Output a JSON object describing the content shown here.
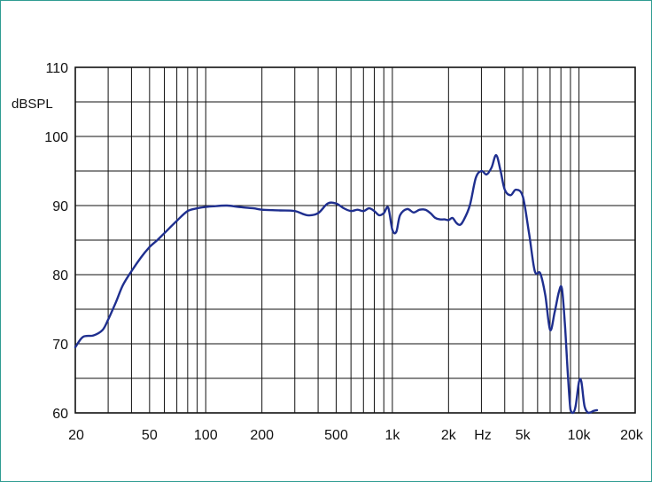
{
  "chart_data": {
    "type": "line",
    "title": "",
    "xlabel": "Hz",
    "ylabel": "dBSPL",
    "x_scale": "log",
    "xlim": [
      20,
      20000
    ],
    "ylim": [
      60,
      110
    ],
    "grid": true,
    "legend": "none",
    "colors": {
      "line": "#1f2f8f",
      "grid": "#111111",
      "frame": "#2f9c92"
    },
    "x_ticks": [
      {
        "value": 20,
        "label": "20"
      },
      {
        "value": 50,
        "label": "50"
      },
      {
        "value": 100,
        "label": "100"
      },
      {
        "value": 200,
        "label": "200"
      },
      {
        "value": 500,
        "label": "500"
      },
      {
        "value": 1000,
        "label": "1k"
      },
      {
        "value": 2000,
        "label": "2k"
      },
      {
        "value": 5000,
        "label": "5k"
      },
      {
        "value": 10000,
        "label": "10k"
      },
      {
        "value": 20000,
        "label": "20k"
      }
    ],
    "y_ticks": [
      {
        "value": 60,
        "label": "60"
      },
      {
        "value": 70,
        "label": "70"
      },
      {
        "value": 80,
        "label": "80"
      },
      {
        "value": 90,
        "label": "90"
      },
      {
        "value": 100,
        "label": "100"
      },
      {
        "value": 110,
        "label": "110"
      }
    ],
    "series": [
      {
        "x": [
          20,
          22,
          25,
          28,
          30,
          33,
          36,
          40,
          45,
          50,
          55,
          60,
          70,
          80,
          90,
          100,
          110,
          130,
          150,
          180,
          200,
          250,
          300,
          350,
          400,
          450,
          500,
          550,
          600,
          650,
          700,
          750,
          800,
          850,
          900,
          950,
          1000,
          1050,
          1100,
          1200,
          1300,
          1400,
          1500,
          1600,
          1700,
          1800,
          1900,
          2000,
          2100,
          2200,
          2300,
          2400,
          2600,
          2800,
          3000,
          3200,
          3400,
          3600,
          3800,
          4000,
          4300,
          4600,
          5000,
          5400,
          5800,
          6200,
          6600,
          7000,
          7400,
          7800,
          8100,
          8400,
          8700,
          9000,
          9300,
          9600,
          10000,
          10300,
          10700,
          11200,
          11600,
          12000,
          12500
        ],
        "y": [
          69.5,
          71,
          71.2,
          72,
          73.5,
          76,
          78.5,
          80.5,
          82.5,
          84,
          85,
          86,
          87.8,
          89.2,
          89.6,
          89.8,
          89.9,
          90,
          89.8,
          89.6,
          89.4,
          89.3,
          89.2,
          88.6,
          88.9,
          90.3,
          90.3,
          89.6,
          89.2,
          89.4,
          89.2,
          89.6,
          89.2,
          88.6,
          88.9,
          89.7,
          86.5,
          86.2,
          88.6,
          89.5,
          89,
          89.4,
          89.4,
          88.9,
          88.2,
          88,
          88,
          87.9,
          88.2,
          87.5,
          87.2,
          87.8,
          90,
          94,
          95,
          94.5,
          95.5,
          97.3,
          95,
          92.3,
          91.5,
          92.3,
          91.3,
          86,
          80.5,
          80.2,
          77,
          72,
          74.5,
          77.5,
          78,
          73,
          66,
          60.5,
          60,
          61,
          64.5,
          64.5,
          61,
          60,
          60.1,
          60.3,
          60.4
        ]
      }
    ]
  }
}
